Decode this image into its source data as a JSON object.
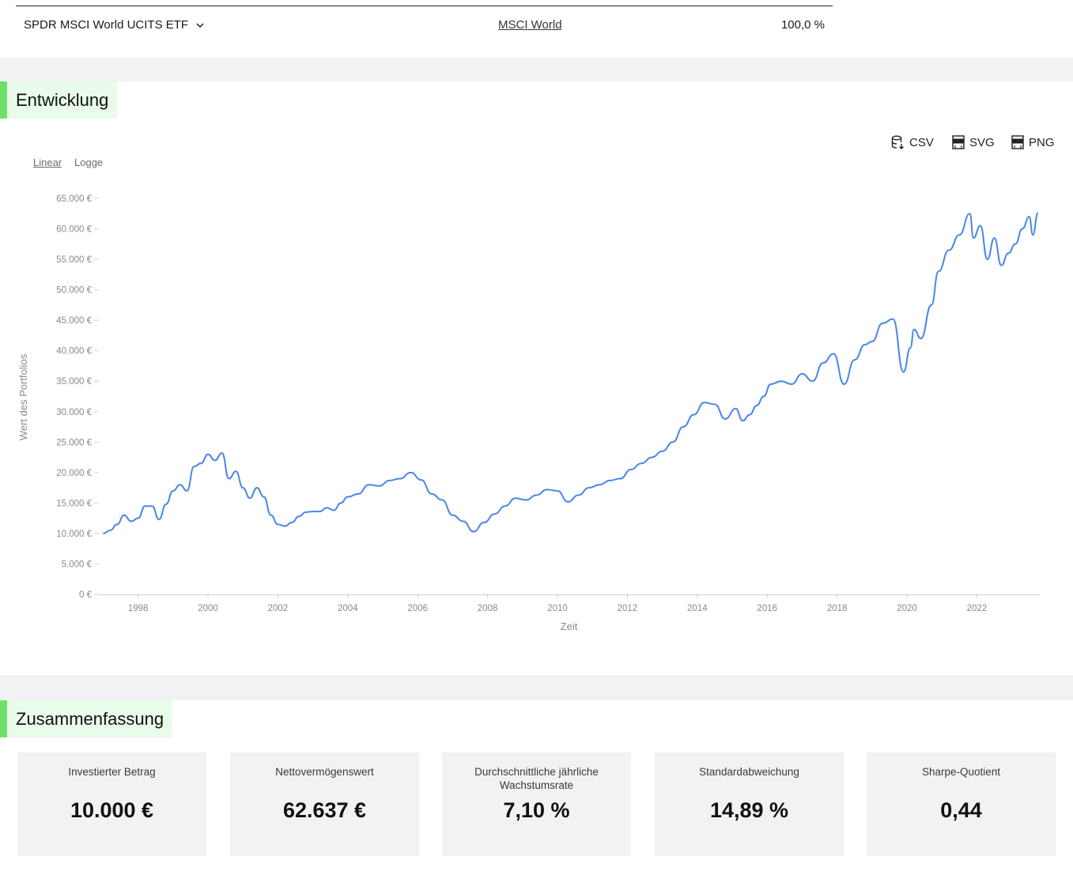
{
  "fund_row": {
    "name": "SPDR MSCI World UCITS ETF",
    "index": "MSCI World",
    "weight": "100,0 %"
  },
  "development": {
    "title": "Entwicklung",
    "exports": {
      "csv": "CSV",
      "svg": "SVG",
      "png": "PNG"
    },
    "scale": {
      "linear": "Linear",
      "log": "Logge",
      "active": "linear"
    }
  },
  "chart_data": {
    "type": "line",
    "title": "",
    "xlabel": "Zeit",
    "ylabel": "Wert des Portfolios",
    "ylim": [
      0,
      65000
    ],
    "xlim": [
      1996.9,
      2023.8
    ],
    "y_ticks": [
      "0 €",
      "5.000 €",
      "10.000 €",
      "15.000 €",
      "20.000 €",
      "25.000 €",
      "30.000 €",
      "35.000 €",
      "40.000 €",
      "45.000 €",
      "50.000 €",
      "55.000 €",
      "60.000 €",
      "65.000 €"
    ],
    "x_ticks": [
      "1998",
      "2000",
      "2002",
      "2004",
      "2006",
      "2008",
      "2010",
      "2012",
      "2014",
      "2016",
      "2018",
      "2020",
      "2022"
    ],
    "grid": false,
    "color": "#4a86e8",
    "series": [
      {
        "x": [
          1997.0,
          1997.2,
          1997.4,
          1997.6,
          1997.8,
          1998.0,
          1998.2,
          1998.4,
          1998.6,
          1998.8,
          1999.0,
          1999.2,
          1999.4,
          1999.6,
          1999.8,
          2000.0,
          2000.2,
          2000.4,
          2000.6,
          2000.8,
          2001.0,
          2001.2,
          2001.4,
          2001.6,
          2001.8,
          2002.0,
          2002.2,
          2002.4,
          2002.6,
          2002.8,
          2003.0,
          2003.2,
          2003.4,
          2003.6,
          2003.8,
          2004.0,
          2004.3,
          2004.6,
          2004.9,
          2005.2,
          2005.5,
          2005.8,
          2006.1,
          2006.4,
          2006.7,
          2007.0,
          2007.3,
          2007.6,
          2007.9,
          2008.2,
          2008.5,
          2008.8,
          2009.1,
          2009.4,
          2009.7,
          2010.0,
          2010.3,
          2010.6,
          2010.9,
          2011.2,
          2011.5,
          2011.8,
          2012.1,
          2012.4,
          2012.7,
          2013.0,
          2013.3,
          2013.6,
          2013.9,
          2014.2,
          2014.5,
          2014.8,
          2015.1,
          2015.3,
          2015.5,
          2015.7,
          2015.9,
          2016.1,
          2016.4,
          2016.7,
          2017.0,
          2017.3,
          2017.6,
          2017.9,
          2018.2,
          2018.5,
          2018.8,
          2019.0,
          2019.3,
          2019.6,
          2019.9,
          2020.1,
          2020.2,
          2020.4,
          2020.7,
          2020.9,
          2021.2,
          2021.5,
          2021.8,
          2021.9,
          2022.1,
          2022.3,
          2022.5,
          2022.7,
          2022.9,
          2023.1,
          2023.3,
          2023.5,
          2023.6,
          2023.75
        ],
        "y": [
          10000,
          10500,
          11500,
          13000,
          12000,
          12500,
          14500,
          14500,
          12300,
          14800,
          17000,
          18000,
          17000,
          21000,
          21500,
          23000,
          22000,
          23200,
          19000,
          20200,
          17500,
          15800,
          17500,
          16000,
          13000,
          11500,
          11200,
          11800,
          12800,
          13500,
          13600,
          13600,
          14200,
          13800,
          15000,
          16000,
          16500,
          18000,
          17800,
          18700,
          19000,
          20000,
          18800,
          16500,
          15500,
          13000,
          12000,
          10300,
          11800,
          13200,
          14500,
          15800,
          15500,
          16300,
          17200,
          17000,
          15200,
          16300,
          17500,
          18000,
          18700,
          19000,
          20500,
          21500,
          22500,
          23500,
          25000,
          27500,
          29500,
          31500,
          31200,
          28800,
          30500,
          28500,
          29500,
          31000,
          32500,
          34500,
          35000,
          34500,
          36200,
          35000,
          38000,
          39500,
          34500,
          38500,
          41000,
          41500,
          44500,
          45200,
          36500,
          40500,
          43500,
          42000,
          47500,
          53000,
          56500,
          59000,
          62500,
          58500,
          60500,
          55000,
          58500,
          54000,
          56000,
          57500,
          60000,
          62000,
          59000,
          62637
        ]
      }
    ]
  },
  "summary": {
    "title": "Zusammenfassung",
    "cards": [
      {
        "label": "Investierter Betrag",
        "value": "10.000 €"
      },
      {
        "label": "Nettovermögenswert",
        "value": "62.637 €"
      },
      {
        "label": "Durchschnittliche jährliche Wachstumsrate",
        "value": "7,10 %"
      },
      {
        "label": "Standardabweichung",
        "value": "14,89 %"
      },
      {
        "label": "Sharpe-Quotient",
        "value": "0,44"
      }
    ]
  }
}
